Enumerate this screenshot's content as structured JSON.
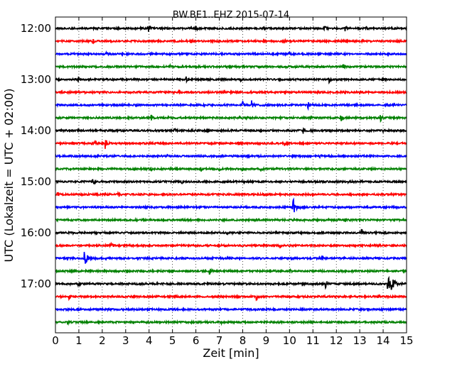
{
  "chart_data": {
    "type": "line",
    "title": "BW.BE1..EHZ 2015-07-14",
    "xlabel": "Zeit  [min]",
    "ylabel": "UTC (Lokalzeit = UTC + 02:00)",
    "xlim": [
      0,
      15
    ],
    "x_ticks": [
      "0",
      "1",
      "2",
      "3",
      "4",
      "5",
      "6",
      "7",
      "8",
      "9",
      "10",
      "11",
      "12",
      "13",
      "14",
      "15"
    ],
    "y_ticks": [
      "12:00",
      "13:00",
      "14:00",
      "15:00",
      "16:00",
      "17:00"
    ],
    "grid": "vertical dotted at each minute",
    "colors": [
      "#000000",
      "#ff0000",
      "#0000ff",
      "#008000"
    ],
    "traces": [
      {
        "start": "12:00",
        "color": "#000000",
        "events": [
          {
            "t": 4.0,
            "a": 0.8
          },
          {
            "t": 6.0,
            "a": 0.4
          },
          {
            "t": 8.9,
            "a": 0.3
          },
          {
            "t": 11.5,
            "a": 0.35
          },
          {
            "t": 12.4,
            "a": 0.6
          },
          {
            "t": 13.3,
            "a": 0.25
          }
        ]
      },
      {
        "start": "12:15",
        "color": "#ff0000",
        "events": [
          {
            "t": 1.6,
            "a": 0.35
          },
          {
            "t": 5.8,
            "a": 0.3
          },
          {
            "t": 9.8,
            "a": 0.2
          }
        ]
      },
      {
        "start": "12:30",
        "color": "#0000ff",
        "events": [
          {
            "t": 2.2,
            "a": 0.2
          },
          {
            "t": 10.0,
            "a": 0.25
          }
        ]
      },
      {
        "start": "12:45",
        "color": "#008000",
        "events": [
          {
            "t": 4.9,
            "a": 0.2
          },
          {
            "t": 12.3,
            "a": 0.35
          }
        ]
      },
      {
        "start": "13:00",
        "color": "#000000",
        "events": [
          {
            "t": 1.0,
            "a": 0.3
          },
          {
            "t": 5.6,
            "a": 0.35
          },
          {
            "t": 7.9,
            "a": 0.3
          },
          {
            "t": 11.7,
            "a": 0.45
          },
          {
            "t": 14.0,
            "a": 0.3
          }
        ]
      },
      {
        "start": "13:15",
        "color": "#ff0000",
        "events": [
          {
            "t": 5.3,
            "a": 0.45
          },
          {
            "t": 9.8,
            "a": 0.2
          },
          {
            "t": 13.0,
            "a": 0.25
          }
        ]
      },
      {
        "start": "13:30",
        "color": "#0000ff",
        "events": [
          {
            "t": 8.0,
            "a": 0.5
          },
          {
            "t": 8.4,
            "a": 0.6
          },
          {
            "t": 10.8,
            "a": 0.45
          },
          {
            "t": 12.8,
            "a": 0.2
          }
        ]
      },
      {
        "start": "13:45",
        "color": "#008000",
        "events": [
          {
            "t": 4.1,
            "a": 0.35
          },
          {
            "t": 12.2,
            "a": 0.45
          },
          {
            "t": 13.9,
            "a": 0.45
          }
        ]
      },
      {
        "start": "14:00",
        "color": "#000000",
        "events": [
          {
            "t": 0.6,
            "a": 0.2
          },
          {
            "t": 5.1,
            "a": 0.3
          },
          {
            "t": 10.6,
            "a": 0.45
          },
          {
            "t": 14.0,
            "a": 0.2
          }
        ]
      },
      {
        "start": "14:15",
        "color": "#ff0000",
        "events": [
          {
            "t": 1.7,
            "a": 0.35
          },
          {
            "t": 2.15,
            "a": 0.9
          },
          {
            "t": 7.8,
            "a": 0.45
          },
          {
            "t": 9.8,
            "a": 0.2
          }
        ]
      },
      {
        "start": "14:30",
        "color": "#0000ff",
        "events": [
          {
            "t": 4.8,
            "a": 0.2
          },
          {
            "t": 11.3,
            "a": 0.4
          }
        ]
      },
      {
        "start": "14:45",
        "color": "#008000",
        "events": [
          {
            "t": 4.1,
            "a": 0.6
          },
          {
            "t": 6.2,
            "a": 0.7
          },
          {
            "t": 7.0,
            "a": 0.3
          },
          {
            "t": 8.0,
            "a": 0.35
          },
          {
            "t": 8.8,
            "a": 0.3
          }
        ]
      },
      {
        "start": "15:00",
        "color": "#000000",
        "events": [
          {
            "t": 1.6,
            "a": 0.75
          },
          {
            "t": 5.4,
            "a": 0.25
          },
          {
            "t": 12.5,
            "a": 0.25
          }
        ]
      },
      {
        "start": "15:15",
        "color": "#ff0000",
        "events": [
          {
            "t": 0.1,
            "a": 0.35
          },
          {
            "t": 2.7,
            "a": 0.35
          },
          {
            "t": 8.9,
            "a": 0.2
          }
        ]
      },
      {
        "start": "15:30",
        "color": "#0000ff",
        "events": [
          {
            "t": 10.15,
            "a": 1.6
          }
        ]
      },
      {
        "start": "15:45",
        "color": "#008000",
        "events": [
          {
            "t": 5.5,
            "a": 0.15
          },
          {
            "t": 12.4,
            "a": 0.2
          }
        ]
      },
      {
        "start": "16:00",
        "color": "#000000",
        "events": [
          {
            "t": 7.3,
            "a": 0.2
          },
          {
            "t": 9.4,
            "a": 0.3
          },
          {
            "t": 13.1,
            "a": 0.35
          },
          {
            "t": 14.1,
            "a": 0.2
          }
        ]
      },
      {
        "start": "16:15",
        "color": "#ff0000",
        "events": [
          {
            "t": 2.4,
            "a": 0.6
          },
          {
            "t": 9.6,
            "a": 0.3
          },
          {
            "t": 13.9,
            "a": 0.2
          }
        ]
      },
      {
        "start": "16:30",
        "color": "#0000ff",
        "events": [
          {
            "t": 1.25,
            "a": 1.2
          },
          {
            "t": 11.4,
            "a": 0.35
          }
        ]
      },
      {
        "start": "16:45",
        "color": "#008000",
        "events": [
          {
            "t": 3.1,
            "a": 0.2
          },
          {
            "t": 6.6,
            "a": 0.45
          },
          {
            "t": 10.0,
            "a": 0.2
          }
        ]
      },
      {
        "start": "17:00",
        "color": "#000000",
        "events": [
          {
            "t": 1.0,
            "a": 0.2
          },
          {
            "t": 11.55,
            "a": 0.9
          },
          {
            "t": 14.2,
            "a": 1.4
          },
          {
            "t": 14.35,
            "a": 1.9
          }
        ]
      },
      {
        "start": "17:15",
        "color": "#ff0000",
        "events": [
          {
            "t": 0.6,
            "a": 0.35
          },
          {
            "t": 8.6,
            "a": 0.55
          }
        ]
      },
      {
        "start": "17:30",
        "color": "#0000ff",
        "events": []
      },
      {
        "start": "17:45",
        "color": "#008000",
        "events": [
          {
            "t": 0.5,
            "a": 0.4
          },
          {
            "t": 7.1,
            "a": 0.15
          }
        ]
      }
    ]
  }
}
